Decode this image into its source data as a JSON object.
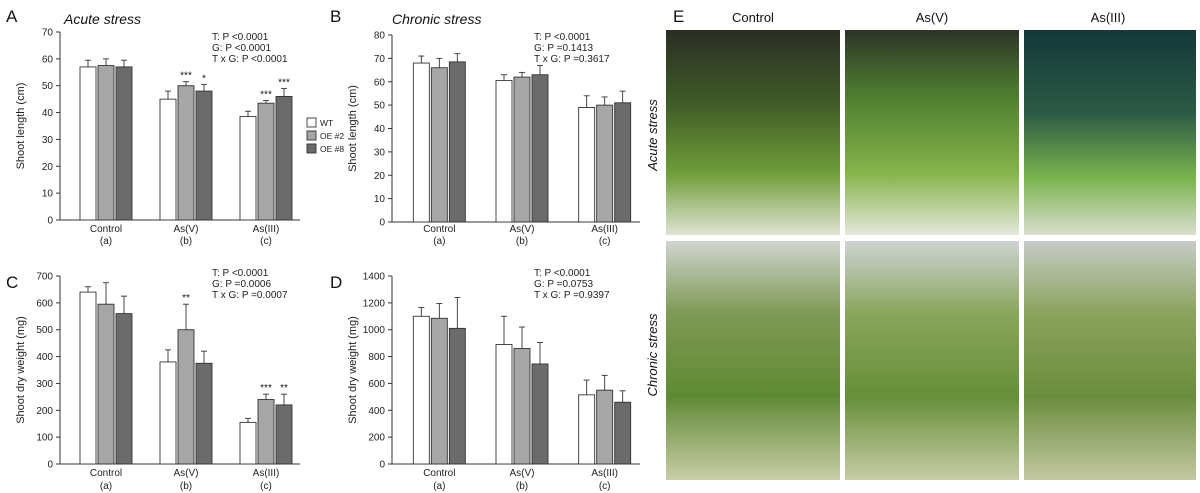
{
  "legend": {
    "entries": [
      {
        "label": "WT",
        "color": "#ffffff"
      },
      {
        "label": "OE #2",
        "color": "#a6a6a6"
      },
      {
        "label": "OE #8",
        "color": "#6b6b6b"
      }
    ]
  },
  "photo_panel": {
    "letter": "E",
    "columns": [
      "Control",
      "As(V)",
      "As(III)"
    ],
    "rows": [
      "Acute stress",
      "Chronic stress"
    ]
  },
  "chart_data": [
    {
      "panel": "A",
      "type": "bar",
      "title": "Acute stress",
      "ylabel": "Shoot length (cm)",
      "ylim": [
        0,
        70
      ],
      "yticks": [
        0,
        10,
        20,
        30,
        40,
        50,
        60,
        70
      ],
      "categories": [
        "Control",
        "As(V)",
        "As(III)"
      ],
      "category_sublabels": [
        "(a)",
        "(b)",
        "(c)"
      ],
      "stats": [
        "T: P <0.0001",
        "G: P <0.0001",
        "T x G: P <0.0001"
      ],
      "series": [
        {
          "name": "WT",
          "values": [
            57,
            45,
            38.5
          ],
          "errors": [
            2.5,
            3,
            2
          ]
        },
        {
          "name": "OE #2",
          "values": [
            57.5,
            50,
            43.5
          ],
          "errors": [
            2.5,
            1.5,
            1
          ]
        },
        {
          "name": "OE #8",
          "values": [
            57,
            48,
            46
          ],
          "errors": [
            2.5,
            2.5,
            3
          ]
        }
      ],
      "significance": [
        [
          "",
          "",
          ""
        ],
        [
          "",
          "***",
          "***"
        ],
        [
          "",
          "*",
          "***"
        ]
      ]
    },
    {
      "panel": "B",
      "type": "bar",
      "title": "Chronic stress",
      "ylabel": "Shoot length (cm)",
      "ylim": [
        0,
        80
      ],
      "yticks": [
        0,
        10,
        20,
        30,
        40,
        50,
        60,
        70,
        80
      ],
      "categories": [
        "Control",
        "As(V)",
        "As(III)"
      ],
      "category_sublabels": [
        "(a)",
        "(b)",
        "(c)"
      ],
      "stats": [
        "T: P <0.0001",
        "G: P =0.1413",
        "T x G: P =0.3617"
      ],
      "series": [
        {
          "name": "WT",
          "values": [
            68,
            60.5,
            49
          ],
          "errors": [
            3,
            2.5,
            5
          ]
        },
        {
          "name": "OE #2",
          "values": [
            66,
            62,
            50
          ],
          "errors": [
            4,
            2,
            3.5
          ]
        },
        {
          "name": "OE #8",
          "values": [
            68.5,
            63,
            51
          ],
          "errors": [
            3.5,
            4,
            5
          ]
        }
      ],
      "significance": [
        [
          "",
          "",
          ""
        ],
        [
          "",
          "",
          ""
        ],
        [
          "",
          "",
          ""
        ]
      ]
    },
    {
      "panel": "C",
      "type": "bar",
      "title": "",
      "ylabel": "Shoot dry weight (mg)",
      "ylim": [
        0,
        700
      ],
      "yticks": [
        0,
        100,
        200,
        300,
        400,
        500,
        600,
        700
      ],
      "categories": [
        "Control",
        "As(V)",
        "As(III)"
      ],
      "category_sublabels": [
        "(a)",
        "(b)",
        "(c)"
      ],
      "stats": [
        "T: P <0.0001",
        "G: P =0.0006",
        "T x G: P =0.0007"
      ],
      "series": [
        {
          "name": "WT",
          "values": [
            640,
            380,
            155
          ],
          "errors": [
            20,
            45,
            15
          ]
        },
        {
          "name": "OE #2",
          "values": [
            595,
            500,
            240
          ],
          "errors": [
            80,
            95,
            20
          ]
        },
        {
          "name": "OE #8",
          "values": [
            560,
            375,
            220
          ],
          "errors": [
            65,
            45,
            40
          ]
        }
      ],
      "significance": [
        [
          "",
          "",
          ""
        ],
        [
          "",
          "**",
          "***"
        ],
        [
          "",
          "",
          "**"
        ]
      ]
    },
    {
      "panel": "D",
      "type": "bar",
      "title": "",
      "ylabel": "Shoot dry weight (mg)",
      "ylim": [
        0,
        1400
      ],
      "yticks": [
        0,
        200,
        400,
        600,
        800,
        1000,
        1200,
        1400
      ],
      "categories": [
        "Control",
        "As(V)",
        "As(III)"
      ],
      "category_sublabels": [
        "(a)",
        "(b)",
        "(c)"
      ],
      "stats": [
        "T: P <0.0001",
        "G: P =0.0753",
        "T x G: P =0.9397"
      ],
      "series": [
        {
          "name": "WT",
          "values": [
            1100,
            890,
            515
          ],
          "errors": [
            65,
            210,
            110
          ]
        },
        {
          "name": "OE #2",
          "values": [
            1085,
            860,
            550
          ],
          "errors": [
            110,
            160,
            110
          ]
        },
        {
          "name": "OE #8",
          "values": [
            1010,
            745,
            460
          ],
          "errors": [
            230,
            160,
            85
          ]
        }
      ],
      "significance": [
        [
          "",
          "",
          ""
        ],
        [
          "",
          "",
          ""
        ],
        [
          "",
          "",
          ""
        ]
      ]
    }
  ]
}
